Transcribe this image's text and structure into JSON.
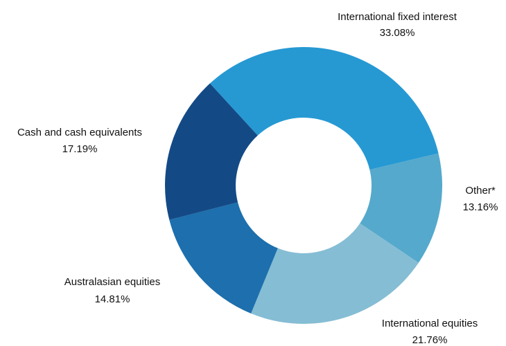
{
  "chart_data": {
    "type": "donut",
    "categories": [
      "International fixed interest",
      "Other*",
      "International equities",
      "Australasian equities",
      "Cash and cash equivalents"
    ],
    "values": [
      33.08,
      13.16,
      21.76,
      14.81,
      17.19
    ],
    "value_labels": [
      "33.08%",
      "13.16%",
      "21.76%",
      "14.81%",
      "17.19%"
    ],
    "colors": [
      "#2699d3",
      "#55a9cc",
      "#85bdd4",
      "#1d6fad",
      "#134a86"
    ]
  }
}
